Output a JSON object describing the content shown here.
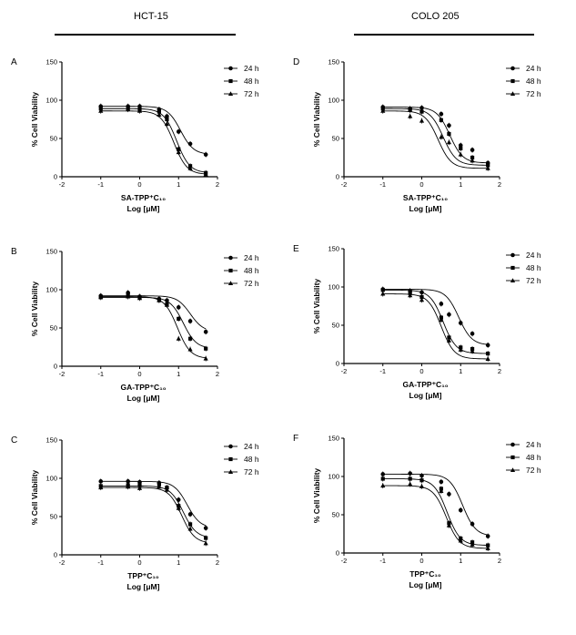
{
  "columns": [
    {
      "title": "HCT-15"
    },
    {
      "title": "COLO 205"
    }
  ],
  "chart_data": [
    {
      "type": "line",
      "panel": "A",
      "column": "HCT-15",
      "xlabel_compound": "SA-TPP⁺C₁₀",
      "xlabel": "Log [μM]",
      "ylabel": "% Cell Viability",
      "xlim": [
        -2,
        2
      ],
      "ylim": [
        0,
        150
      ],
      "xticks": [
        -2,
        -1,
        0,
        1,
        2
      ],
      "yticks": [
        0,
        50,
        100,
        150
      ],
      "x": [
        -1,
        -0.3,
        0,
        0.5,
        0.7,
        1,
        1.3,
        1.7
      ],
      "series": [
        {
          "name": "24 h",
          "marker": "circle",
          "values": [
            92,
            92,
            92,
            88,
            79,
            59,
            43,
            29
          ],
          "ic50": 1.05
        },
        {
          "name": "48 h",
          "marker": "square",
          "values": [
            89,
            89,
            88,
            85,
            75,
            36,
            14,
            5
          ],
          "ic50": 0.95
        },
        {
          "name": "72 h",
          "marker": "triangle",
          "values": [
            86,
            88,
            86,
            81,
            69,
            32,
            11,
            3
          ],
          "ic50": 0.88
        }
      ],
      "legend": "top-right",
      "grid": false
    },
    {
      "type": "line",
      "panel": "B",
      "column": "HCT-15",
      "xlabel_compound": "GA-TPP⁺C₁₀",
      "xlabel": "Log [μM]",
      "ylabel": "% Cell Viability",
      "xlim": [
        -2,
        2
      ],
      "ylim": [
        0,
        150
      ],
      "xticks": [
        -2,
        -1,
        0,
        1,
        2
      ],
      "yticks": [
        0,
        50,
        100,
        150
      ],
      "x": [
        -1,
        -0.3,
        0,
        0.5,
        0.7,
        1,
        1.3,
        1.7
      ],
      "series": [
        {
          "name": "24 h",
          "marker": "circle",
          "values": [
            92,
            96,
            91,
            88,
            86,
            77,
            59,
            45
          ],
          "ic50": 1.3
        },
        {
          "name": "48 h",
          "marker": "square",
          "values": [
            90,
            93,
            90,
            87,
            81,
            62,
            36,
            23
          ],
          "ic50": 1.12
        },
        {
          "name": "72 h",
          "marker": "triangle",
          "values": [
            91,
            91,
            89,
            86,
            80,
            36,
            22,
            10
          ],
          "ic50": 0.97
        }
      ],
      "legend": "top-right",
      "grid": false
    },
    {
      "type": "line",
      "panel": "C",
      "column": "HCT-15",
      "xlabel_compound": "TPP⁺C₁₀",
      "xlabel": "Log [μM]",
      "ylabel": "% Cell Viability",
      "xlim": [
        -2,
        2
      ],
      "ylim": [
        0,
        150
      ],
      "xticks": [
        -2,
        -1,
        0,
        1,
        2
      ],
      "yticks": [
        0,
        50,
        100,
        150
      ],
      "x": [
        -1,
        -0.3,
        0,
        0.5,
        0.7,
        1,
        1.3,
        1.7
      ],
      "series": [
        {
          "name": "24 h",
          "marker": "circle",
          "values": [
            96,
            96,
            95,
            94,
            87,
            72,
            53,
            35
          ],
          "ic50": 1.22
        },
        {
          "name": "48 h",
          "marker": "square",
          "values": [
            90,
            91,
            91,
            92,
            88,
            64,
            40,
            22
          ],
          "ic50": 1.12
        },
        {
          "name": "72 h",
          "marker": "triangle",
          "values": [
            88,
            89,
            87,
            89,
            85,
            61,
            34,
            15
          ],
          "ic50": 1.08
        }
      ],
      "legend": "top-right",
      "grid": false
    },
    {
      "type": "line",
      "panel": "D",
      "column": "COLO 205",
      "xlabel_compound": "SA-TPP⁺C₁₀",
      "xlabel": "Log [μM]",
      "ylabel": "% Cell Viability",
      "xlim": [
        -2,
        2
      ],
      "ylim": [
        0,
        150
      ],
      "xticks": [
        -2,
        -1,
        0,
        1,
        2
      ],
      "yticks": [
        0,
        50,
        100,
        150
      ],
      "x": [
        -1,
        -0.3,
        0,
        0.5,
        0.7,
        1,
        1.3,
        1.7
      ],
      "series": [
        {
          "name": "24 h",
          "marker": "circle",
          "values": [
            91,
            89,
            90,
            82,
            67,
            41,
            35,
            18
          ],
          "ic50": 0.72
        },
        {
          "name": "48 h",
          "marker": "square",
          "values": [
            89,
            87,
            85,
            74,
            56,
            37,
            25,
            15
          ],
          "ic50": 0.55
        },
        {
          "name": "72 h",
          "marker": "triangle",
          "values": [
            86,
            79,
            73,
            52,
            45,
            29,
            21,
            11
          ],
          "ic50": 0.42
        }
      ],
      "legend": "top-right",
      "grid": false
    },
    {
      "type": "line",
      "panel": "E",
      "column": "COLO 205",
      "xlabel_compound": "GA-TPP⁺C₁₀",
      "xlabel": "Log [μM]",
      "ylabel": "% Cell Viability",
      "xlim": [
        -2,
        2
      ],
      "ylim": [
        0,
        150
      ],
      "xticks": [
        -2,
        -1,
        0,
        1,
        2
      ],
      "yticks": [
        0,
        50,
        100,
        150
      ],
      "x": [
        -1,
        -0.3,
        0,
        0.5,
        0.7,
        1,
        1.3,
        1.7
      ],
      "series": [
        {
          "name": "24 h",
          "marker": "circle",
          "values": [
            97,
            95,
            93,
            78,
            64,
            53,
            39,
            24
          ],
          "ic50": 0.95
        },
        {
          "name": "48 h",
          "marker": "square",
          "values": [
            96,
            92,
            87,
            60,
            34,
            21,
            19,
            13
          ],
          "ic50": 0.55
        },
        {
          "name": "72 h",
          "marker": "triangle",
          "values": [
            91,
            89,
            83,
            57,
            30,
            18,
            16,
            6
          ],
          "ic50": 0.5
        }
      ],
      "legend": "top-right",
      "grid": false
    },
    {
      "type": "line",
      "panel": "F",
      "column": "COLO 205",
      "xlabel_compound": "TPP⁺C₁₀",
      "xlabel": "Log [μM]",
      "ylabel": "% Cell Viability",
      "xlim": [
        -2,
        2
      ],
      "ylim": [
        0,
        150
      ],
      "xticks": [
        -2,
        -1,
        0,
        1,
        2
      ],
      "yticks": [
        0,
        50,
        100,
        150
      ],
      "x": [
        -1,
        -0.3,
        0,
        0.5,
        0.7,
        1,
        1.3,
        1.7
      ],
      "series": [
        {
          "name": "24 h",
          "marker": "circle",
          "values": [
            103,
            104,
            101,
            93,
            77,
            56,
            38,
            22
          ],
          "ic50": 1.05
        },
        {
          "name": "48 h",
          "marker": "square",
          "values": [
            97,
            97,
            95,
            84,
            39,
            19,
            14,
            10
          ],
          "ic50": 0.65
        },
        {
          "name": "72 h",
          "marker": "triangle",
          "values": [
            88,
            90,
            87,
            81,
            36,
            16,
            11,
            6
          ],
          "ic50": 0.63
        }
      ],
      "legend": "top-right",
      "grid": false
    }
  ]
}
